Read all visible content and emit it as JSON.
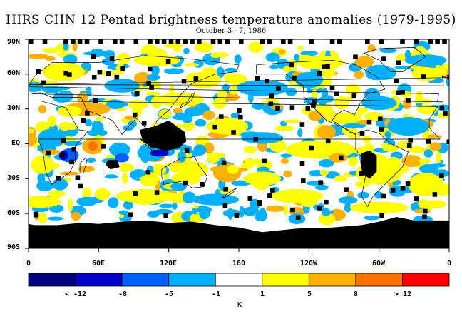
{
  "title": "HIRS CHN 12 Pentad brightness temperature anomalies (1979-1995)",
  "subtitle": "October 3 - 7, 1986",
  "map": {
    "lat_labels": [
      "90N",
      "60N",
      "30N",
      "EQ",
      "30S",
      "60S",
      "90S"
    ],
    "lon_labels": [
      "0",
      "60E",
      "120E",
      "180",
      "120W",
      "60W",
      "0"
    ]
  },
  "colorbar": {
    "colors": [
      "#000080",
      "#0000cc",
      "#0060ff",
      "#00b0ff",
      "#ffffff",
      "#ffff00",
      "#ffb000",
      "#ff7000",
      "#ff0000"
    ],
    "labels": [
      "< -12",
      "-8",
      "-5",
      "-1",
      "1",
      "5",
      "8",
      "> 12"
    ],
    "unit": "K"
  },
  "missing_color": "#000000"
}
